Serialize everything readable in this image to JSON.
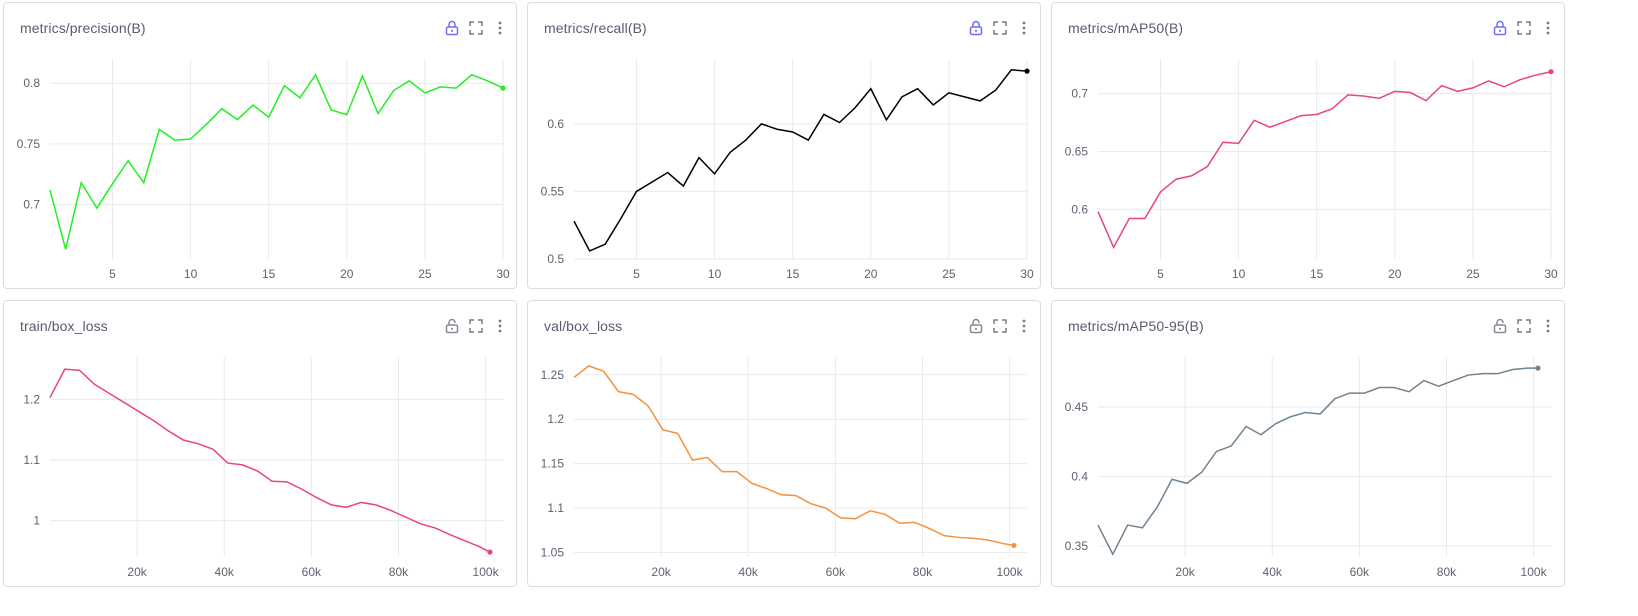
{
  "panels": [
    {
      "title": "metrics/precision(B)",
      "locked": true,
      "icons": [
        "lock-icon",
        "fullscreen-icon",
        "more-vert-icon"
      ]
    },
    {
      "title": "metrics/recall(B)",
      "locked": true,
      "icons": [
        "lock-icon",
        "fullscreen-icon",
        "more-vert-icon"
      ]
    },
    {
      "title": "metrics/mAP50(B)",
      "locked": true,
      "icons": [
        "lock-icon",
        "fullscreen-icon",
        "more-vert-icon"
      ]
    },
    {
      "title": "train/box_loss",
      "locked": false,
      "icons": [
        "unlock-icon",
        "fullscreen-icon",
        "more-vert-icon"
      ]
    },
    {
      "title": "val/box_loss",
      "locked": false,
      "icons": [
        "unlock-icon",
        "fullscreen-icon",
        "more-vert-icon"
      ]
    },
    {
      "title": "metrics/mAP50-95(B)",
      "locked": false,
      "icons": [
        "unlock-icon",
        "fullscreen-icon",
        "more-vert-icon"
      ]
    }
  ],
  "colors": {
    "lock_locked": "#6f6ff0",
    "lock_unlocked": "#8a8a96",
    "grid": "#e9eaee",
    "tick_text": "#5f6270"
  },
  "chart_data": [
    {
      "type": "line",
      "title": "metrics/precision(B)",
      "color": "#22f022",
      "x": [
        1,
        2,
        3,
        4,
        5,
        6,
        7,
        8,
        9,
        10,
        11,
        12,
        13,
        14,
        15,
        16,
        17,
        18,
        19,
        20,
        21,
        22,
        23,
        24,
        25,
        26,
        27,
        28,
        29,
        30
      ],
      "y": [
        0.712,
        0.663,
        0.718,
        0.697,
        0.717,
        0.736,
        0.718,
        0.762,
        0.753,
        0.754,
        0.766,
        0.779,
        0.77,
        0.782,
        0.772,
        0.798,
        0.788,
        0.807,
        0.778,
        0.774,
        0.806,
        0.775,
        0.794,
        0.802,
        0.792,
        0.797,
        0.796,
        0.807,
        0.802,
        0.796
      ],
      "xlim": [
        1,
        30
      ],
      "ylim": [
        0.655,
        0.82
      ],
      "xticks": [
        5,
        10,
        15,
        20,
        25,
        30
      ],
      "xtick_labels": [
        "5",
        "10",
        "15",
        "20",
        "25",
        "30"
      ],
      "yticks": [
        0.7,
        0.75,
        0.8
      ],
      "ytick_labels": [
        "0.7",
        "0.75",
        "0.8"
      ],
      "grid": true
    },
    {
      "type": "line",
      "title": "metrics/recall(B)",
      "color": "#000000",
      "x": [
        1,
        2,
        3,
        4,
        5,
        6,
        7,
        8,
        9,
        10,
        11,
        12,
        13,
        14,
        15,
        16,
        17,
        18,
        19,
        20,
        21,
        22,
        23,
        24,
        25,
        26,
        27,
        28,
        29,
        30
      ],
      "y": [
        0.528,
        0.506,
        0.511,
        0.53,
        0.55,
        0.557,
        0.564,
        0.554,
        0.575,
        0.563,
        0.579,
        0.588,
        0.6,
        0.596,
        0.594,
        0.588,
        0.607,
        0.601,
        0.612,
        0.626,
        0.603,
        0.62,
        0.626,
        0.614,
        0.623,
        0.62,
        0.617,
        0.625,
        0.64,
        0.639
      ],
      "xlim": [
        1,
        30
      ],
      "ylim": [
        0.5,
        0.648
      ],
      "xticks": [
        5,
        10,
        15,
        20,
        25,
        30
      ],
      "xtick_labels": [
        "5",
        "10",
        "15",
        "20",
        "25",
        "30"
      ],
      "yticks": [
        0.5,
        0.55,
        0.6
      ],
      "ytick_labels": [
        "0.5",
        "0.55",
        "0.6"
      ],
      "grid": true
    },
    {
      "type": "line",
      "title": "metrics/mAP50(B)",
      "color": "#e8457a",
      "x": [
        1,
        2,
        3,
        4,
        5,
        6,
        7,
        8,
        9,
        10,
        11,
        12,
        13,
        14,
        15,
        16,
        17,
        18,
        19,
        20,
        21,
        22,
        23,
        24,
        25,
        26,
        27,
        28,
        29,
        30
      ],
      "y": [
        0.598,
        0.567,
        0.592,
        0.592,
        0.615,
        0.626,
        0.629,
        0.637,
        0.658,
        0.657,
        0.677,
        0.671,
        0.676,
        0.681,
        0.682,
        0.687,
        0.699,
        0.698,
        0.696,
        0.702,
        0.701,
        0.694,
        0.707,
        0.702,
        0.705,
        0.711,
        0.706,
        0.712,
        0.716,
        0.719
      ],
      "xlim": [
        1,
        30
      ],
      "ylim": [
        0.557,
        0.73
      ],
      "xticks": [
        5,
        10,
        15,
        20,
        25,
        30
      ],
      "xtick_labels": [
        "5",
        "10",
        "15",
        "20",
        "25",
        "30"
      ],
      "yticks": [
        0.6,
        0.65,
        0.7
      ],
      "ytick_labels": [
        "0.6",
        "0.65",
        "0.7"
      ],
      "grid": true
    },
    {
      "type": "line",
      "title": "train/box_loss",
      "color": "#e8457a",
      "x": [
        0,
        3400,
        6800,
        10200,
        13600,
        17000,
        20400,
        23800,
        27200,
        30600,
        34000,
        37400,
        40800,
        44200,
        47600,
        51000,
        54400,
        57800,
        61200,
        64600,
        68000,
        71400,
        74800,
        78200,
        81600,
        85000,
        88400,
        91800,
        95200,
        98600,
        101000
      ],
      "y": [
        1.203,
        1.25,
        1.248,
        1.225,
        1.21,
        1.195,
        1.18,
        1.165,
        1.148,
        1.133,
        1.127,
        1.118,
        1.095,
        1.092,
        1.082,
        1.065,
        1.064,
        1.052,
        1.038,
        1.026,
        1.022,
        1.03,
        1.026,
        1.017,
        1.006,
        0.995,
        0.988,
        0.977,
        0.967,
        0.957,
        0.948
      ],
      "xlim": [
        0,
        104000
      ],
      "ylim": [
        0.94,
        1.27
      ],
      "xticks": [
        20000,
        40000,
        60000,
        80000,
        100000
      ],
      "xtick_labels": [
        "20k",
        "40k",
        "60k",
        "80k",
        "100k"
      ],
      "yticks": [
        1.0,
        1.1,
        1.2
      ],
      "ytick_labels": [
        "1",
        "1.1",
        "1.2"
      ],
      "grid": true
    },
    {
      "type": "line",
      "title": "val/box_loss",
      "color": "#f5913e",
      "x": [
        0,
        3400,
        6800,
        10200,
        13600,
        17000,
        20400,
        23800,
        27200,
        30600,
        34000,
        37400,
        40800,
        44200,
        47600,
        51000,
        54400,
        57800,
        61200,
        64600,
        68000,
        71400,
        74800,
        78200,
        81600,
        85000,
        88400,
        91800,
        95200,
        98600,
        101000
      ],
      "y": [
        1.247,
        1.26,
        1.254,
        1.231,
        1.228,
        1.215,
        1.188,
        1.184,
        1.154,
        1.157,
        1.141,
        1.141,
        1.128,
        1.122,
        1.115,
        1.114,
        1.105,
        1.1,
        1.089,
        1.088,
        1.097,
        1.093,
        1.083,
        1.084,
        1.077,
        1.069,
        1.067,
        1.066,
        1.064,
        1.06,
        1.058
      ],
      "xlim": [
        0,
        104000
      ],
      "ylim": [
        1.045,
        1.27
      ],
      "xticks": [
        20000,
        40000,
        60000,
        80000,
        100000
      ],
      "xtick_labels": [
        "20k",
        "40k",
        "60k",
        "80k",
        "100k"
      ],
      "yticks": [
        1.05,
        1.1,
        1.15,
        1.2,
        1.25
      ],
      "ytick_labels": [
        "1.05",
        "1.1",
        "1.15",
        "1.2",
        "1.25"
      ],
      "grid": true
    },
    {
      "type": "line",
      "title": "metrics/mAP50-95(B)",
      "color": "#6f8390",
      "x": [
        0,
        3400,
        6800,
        10200,
        13600,
        17000,
        20400,
        23800,
        27200,
        30600,
        34000,
        37400,
        40800,
        44200,
        47600,
        51000,
        54400,
        57800,
        61200,
        64600,
        68000,
        71400,
        74800,
        78200,
        81600,
        85000,
        88400,
        91800,
        95200,
        98600,
        101000
      ],
      "y": [
        0.365,
        0.344,
        0.365,
        0.363,
        0.378,
        0.398,
        0.395,
        0.403,
        0.418,
        0.422,
        0.436,
        0.43,
        0.438,
        0.443,
        0.446,
        0.445,
        0.456,
        0.46,
        0.46,
        0.464,
        0.464,
        0.461,
        0.469,
        0.465,
        0.469,
        0.473,
        0.474,
        0.474,
        0.477,
        0.478,
        0.478
      ],
      "xlim": [
        0,
        104000
      ],
      "ylim": [
        0.342,
        0.486
      ],
      "xticks": [
        20000,
        40000,
        60000,
        80000,
        100000
      ],
      "xtick_labels": [
        "20k",
        "40k",
        "60k",
        "80k",
        "100k"
      ],
      "yticks": [
        0.35,
        0.4,
        0.45
      ],
      "ytick_labels": [
        "0.35",
        "0.4",
        "0.45"
      ],
      "grid": true
    }
  ]
}
